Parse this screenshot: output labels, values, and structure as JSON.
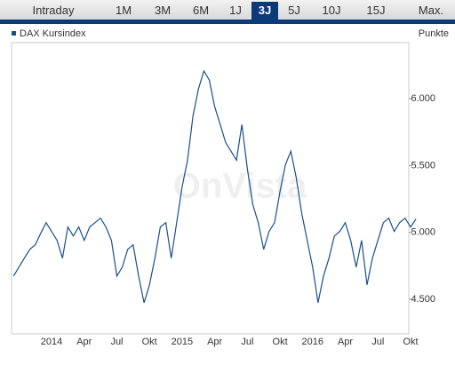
{
  "tabs": [
    "Intraday",
    "1M",
    "3M",
    "6M",
    "1J",
    "3J",
    "5J",
    "10J",
    "15J",
    "Max."
  ],
  "selected_tab": 5,
  "chart_data": {
    "type": "line",
    "y_label": "Punkte",
    "watermark": "OnVista",
    "categories": [
      null,
      null,
      null,
      null,
      null,
      null,
      null,
      "2014",
      null,
      null,
      null,
      null,
      null,
      "Apr",
      null,
      null,
      null,
      null,
      null,
      "Jul",
      null,
      null,
      null,
      null,
      null,
      "Okt",
      null,
      null,
      null,
      null,
      null,
      "2015",
      null,
      null,
      null,
      null,
      null,
      "Apr",
      null,
      null,
      null,
      null,
      null,
      "Jul",
      null,
      null,
      null,
      null,
      null,
      "Okt",
      null,
      null,
      null,
      null,
      null,
      "2016",
      null,
      null,
      null,
      null,
      null,
      "Apr",
      null,
      null,
      null,
      null,
      null,
      "Jul",
      null,
      null,
      null,
      null,
      null,
      "Okt",
      null
    ],
    "series": [
      {
        "name": "DAX Kursindex",
        "color": "#1a4f8f",
        "values": [
          4673,
          4740,
          4807,
          4873,
          4907,
          4993,
          5073,
          5007,
          4940,
          4807,
          5040,
          4973,
          5040,
          4940,
          5040,
          5073,
          5107,
          5040,
          4940,
          4673,
          4740,
          4873,
          4907,
          4673,
          4473,
          4607,
          4807,
          5040,
          5073,
          4807,
          5073,
          5340,
          5540,
          5873,
          6073,
          6207,
          6140,
          5940,
          5807,
          5673,
          5607,
          5540,
          5807,
          5473,
          5207,
          5073,
          4873,
          5007,
          5073,
          5307,
          5507,
          5607,
          5407,
          5140,
          4940,
          4740,
          4473,
          4673,
          4807,
          4973,
          5007,
          5073,
          4940,
          4740,
          4940,
          4607,
          4807,
          4940,
          5073,
          5107,
          5007,
          5073,
          5107,
          5040,
          5100
        ]
      }
    ],
    "ylim": [
      4240,
      6420
    ],
    "yticks": [
      {
        "value": 4500,
        "label": "4.500"
      },
      {
        "value": 5000,
        "label": "5.000"
      },
      {
        "value": 5500,
        "label": "5.500"
      },
      {
        "value": 6000,
        "label": "6.000"
      }
    ],
    "grid": false
  }
}
